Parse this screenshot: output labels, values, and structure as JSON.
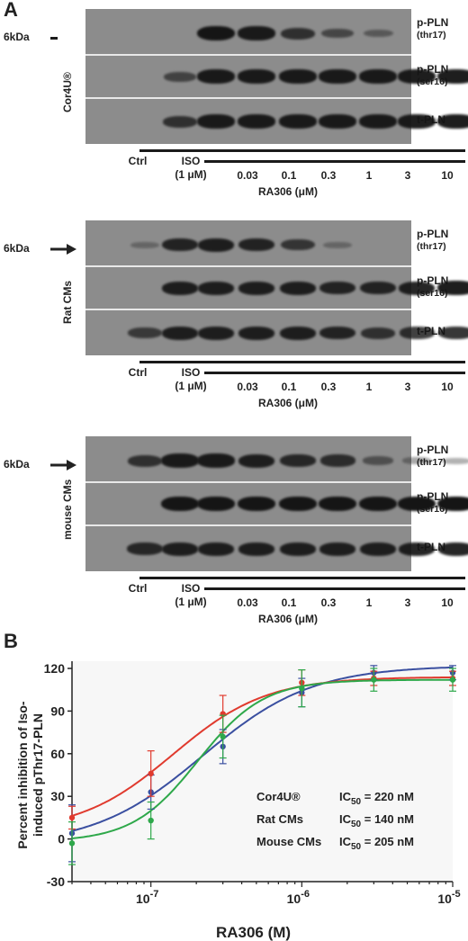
{
  "panel_a_letter": "A",
  "panel_b_letter": "B",
  "blots": [
    {
      "cell": "Cor4U®",
      "kda": "6kDa",
      "ctrl": "Ctrl",
      "iso_line1": "ISO",
      "iso_line2": "(1 μM)",
      "doses": [
        "0.03",
        "0.1",
        "0.3",
        "1",
        "3",
        "10"
      ],
      "drug": "RA306 (μM)",
      "strips": [
        {
          "label": "p-PLN",
          "sub": "(thr17)",
          "intensity": [
            0,
            0,
            1.0,
            0.95,
            0.7,
            0.45,
            0.25,
            0,
            0
          ]
        },
        {
          "label": "p-PLN",
          "sub": "(ser16)",
          "intensity": [
            0,
            0.5,
            0.95,
            0.95,
            0.95,
            0.95,
            0.95,
            0.95,
            0.95
          ]
        },
        {
          "label": "t-PLN",
          "sub": "",
          "intensity": [
            0,
            0.7,
            0.95,
            0.95,
            0.95,
            0.95,
            0.95,
            0.95,
            0.95
          ]
        }
      ]
    },
    {
      "cell": "Rat CMs",
      "kda": "6kDa",
      "ctrl": "Ctrl",
      "iso_line1": "ISO",
      "iso_line2": "(1 μM)",
      "doses": [
        "0.03",
        "0.1",
        "0.3",
        "1",
        "3",
        "10"
      ],
      "drug": "RA306 (μM)",
      "strips": [
        {
          "label": "p-PLN",
          "sub": "(thr17)",
          "intensity": [
            0.1,
            0.85,
            0.9,
            0.85,
            0.65,
            0.1,
            0,
            0,
            0
          ]
        },
        {
          "label": "p-PLN",
          "sub": "(ser16)",
          "intensity": [
            0,
            0.9,
            0.9,
            0.9,
            0.9,
            0.85,
            0.85,
            0.9,
            0.95
          ]
        },
        {
          "label": "t-PLN",
          "sub": "",
          "intensity": [
            0.6,
            0.9,
            0.9,
            0.9,
            0.9,
            0.85,
            0.7,
            0.75,
            0.8
          ]
        }
      ]
    },
    {
      "cell": "mouse CMs",
      "kda": "6kDa",
      "ctrl": "Ctrl",
      "iso_line1": "ISO",
      "iso_line2": "(1 μM)",
      "doses": [
        "0.03",
        "0.1",
        "0.3",
        "1",
        "3",
        "10"
      ],
      "drug": "RA306 (μM)",
      "strips": [
        {
          "label": "p-PLN",
          "sub": "(thr17)",
          "intensity": [
            0.7,
            0.95,
            0.95,
            0.9,
            0.8,
            0.75,
            0.35,
            0.15,
            0.1
          ]
        },
        {
          "label": "p-PLN",
          "sub": "(ser16)",
          "intensity": [
            0,
            1.0,
            1.0,
            1.0,
            1.0,
            1.0,
            1.0,
            1.0,
            1.0
          ]
        },
        {
          "label": "t-PLN",
          "sub": "",
          "intensity": [
            0.8,
            0.9,
            0.9,
            0.9,
            0.9,
            0.9,
            0.9,
            0.9,
            0.9
          ]
        }
      ]
    }
  ],
  "chart_data": {
    "type": "line",
    "ylabel_line1": "Percent inhibition of Iso-",
    "ylabel_line2": "induced pThr17-PLN",
    "xlabel": "RA306 (M)",
    "xscale": "log",
    "xlim": [
      3e-08,
      1e-05
    ],
    "ylim": [
      -30,
      120
    ],
    "yticks": [
      -30,
      0,
      30,
      60,
      90,
      120
    ],
    "xticks": [
      {
        "value": 1e-07,
        "base": "10",
        "exp": "-7"
      },
      {
        "value": 1e-06,
        "base": "10",
        "exp": "-6"
      },
      {
        "value": 1e-05,
        "base": "10",
        "exp": "-5"
      }
    ],
    "series": [
      {
        "name": "Cor4U®",
        "ic50_label": "IC",
        "ic50_sub": "50",
        "ic50_value": " = 220 nM",
        "color": "#3a4fa0",
        "x": [
          3e-08,
          1e-07,
          3e-07,
          1e-06,
          3e-06,
          1e-05
        ],
        "y": [
          4,
          33,
          65,
          103,
          117,
          117
        ],
        "err": [
          20,
          12,
          12,
          10,
          5,
          5
        ],
        "fit": {
          "bottom": -5,
          "top": 122,
          "ic50": 2.2e-07,
          "hill": 1.2
        }
      },
      {
        "name": "Rat CMs",
        "ic50_label": "IC",
        "ic50_sub": "50",
        "ic50_value": " = 140 nM",
        "color": "#e03a2e",
        "x": [
          3e-08,
          1e-07,
          3e-07,
          1e-06,
          3e-06,
          1e-05
        ],
        "y": [
          15,
          46,
          88,
          110,
          113,
          113
        ],
        "err": [
          8,
          16,
          13,
          9,
          5,
          5
        ],
        "fit": {
          "bottom": 5,
          "top": 114,
          "ic50": 1.4e-07,
          "hill": 1.4
        }
      },
      {
        "name": "Mouse CMs",
        "ic50_label": "IC",
        "ic50_sub": "50",
        "ic50_value": " = 205 nM",
        "color": "#2ea84a",
        "x": [
          3e-08,
          1e-07,
          3e-07,
          1e-06,
          3e-06,
          1e-05
        ],
        "y": [
          -3,
          13,
          72,
          106,
          112,
          112
        ],
        "err": [
          15,
          13,
          15,
          13,
          8,
          8
        ],
        "fit": {
          "bottom": -2,
          "top": 112,
          "ic50": 2.05e-07,
          "hill": 2.0
        }
      }
    ]
  }
}
